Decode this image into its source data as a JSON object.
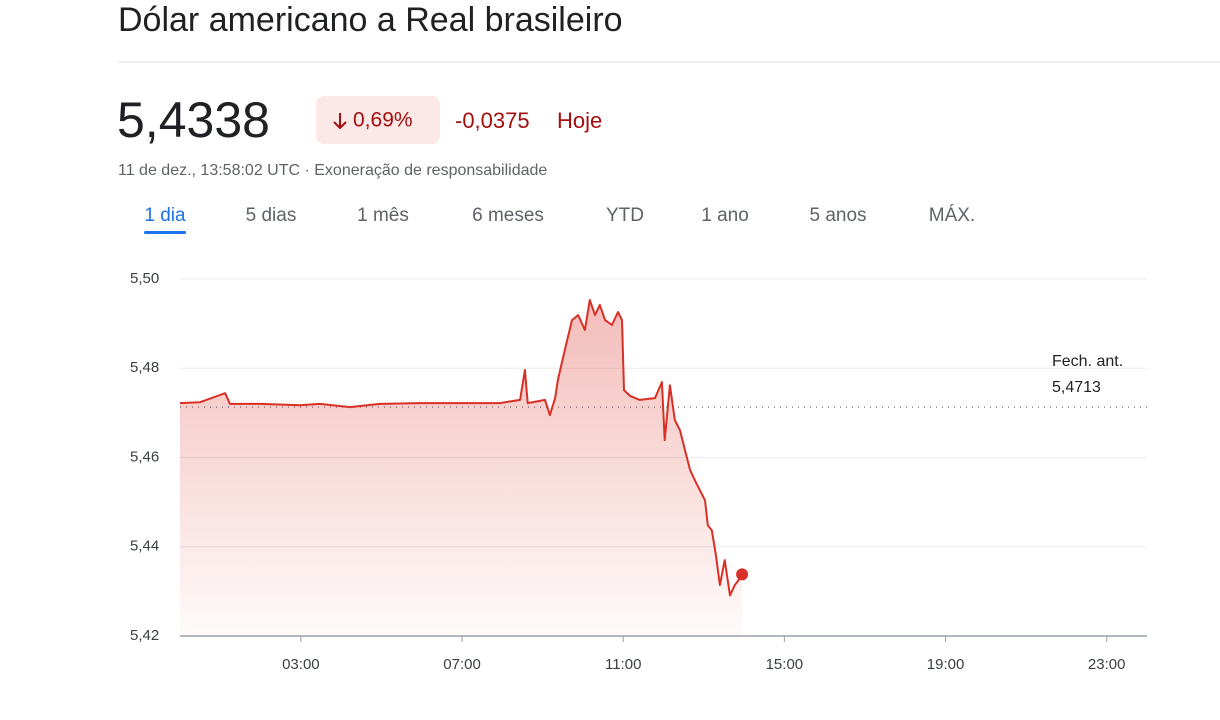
{
  "header": {
    "title": "Dólar americano a Real brasileiro",
    "price": "5,4338",
    "change_percent": "0,69%",
    "change": "-0,0375",
    "period": "Hoje",
    "timestamp": "11 de dez., 13:58:02 UTC · Exoneração de responsabilidade"
  },
  "tabs": [
    "1 dia",
    "5 dias",
    "1 mês",
    "6 meses",
    "YTD",
    "1 ano",
    "5 anos",
    "MÁX."
  ],
  "active_tab": 0,
  "chart_data": {
    "type": "line",
    "x": [
      0,
      0.5,
      1.12,
      1.24,
      1.99,
      2.98,
      3.47,
      4.22,
      4.96,
      5.96,
      6.95,
      7.94,
      8.44,
      8.56,
      8.63,
      9.06,
      9.18,
      9.31,
      9.38,
      9.55,
      9.73,
      9.88,
      10.05,
      10.17,
      10.3,
      10.42,
      10.55,
      10.72,
      10.87,
      10.97,
      11.02,
      11.17,
      11.41,
      11.79,
      11.96,
      12.03,
      12.16,
      12.28,
      12.41,
      12.53,
      12.66,
      12.78,
      12.9,
      13.03,
      13.1,
      13.2,
      13.3,
      13.4,
      13.52,
      13.65,
      13.77,
      13.9,
      13.95
    ],
    "series": [
      {
        "name": "USD/BRL",
        "color": "#d93025",
        "values": [
          5.4722,
          5.4724,
          5.4744,
          5.472,
          5.472,
          5.4717,
          5.472,
          5.4713,
          5.472,
          5.4722,
          5.4722,
          5.4722,
          5.4729,
          5.4796,
          5.4722,
          5.4729,
          5.4695,
          5.4733,
          5.4774,
          5.4841,
          5.4908,
          5.4919,
          5.4886,
          5.4953,
          5.4919,
          5.4942,
          5.4908,
          5.4897,
          5.4926,
          5.4908,
          5.4751,
          5.4738,
          5.4729,
          5.4733,
          5.4769,
          5.4639,
          5.4762,
          5.4684,
          5.4661,
          5.4617,
          5.4572,
          5.4549,
          5.4527,
          5.4504,
          5.4448,
          5.4437,
          5.4381,
          5.4314,
          5.437,
          5.4291,
          5.4314,
          5.433,
          5.4338
        ]
      }
    ],
    "xlim": [
      0,
      24
    ],
    "xticks": [
      {
        "value": 3,
        "label": "03:00"
      },
      {
        "value": 7,
        "label": "07:00"
      },
      {
        "value": 11,
        "label": "11:00"
      },
      {
        "value": 15,
        "label": "15:00"
      },
      {
        "value": 19,
        "label": "19:00"
      },
      {
        "value": 23,
        "label": "23:00"
      }
    ],
    "ylim": [
      5.42,
      5.5
    ],
    "yticks": [
      {
        "value": 5.42,
        "label": "5,42"
      },
      {
        "value": 5.44,
        "label": "5,44"
      },
      {
        "value": 5.46,
        "label": "5,46"
      },
      {
        "value": 5.48,
        "label": "5,48"
      },
      {
        "value": 5.5,
        "label": "5,50"
      }
    ],
    "grid": true,
    "previous_close": {
      "label": "Fech. ant.",
      "value": 5.4713,
      "value_label": "5,4713"
    }
  }
}
